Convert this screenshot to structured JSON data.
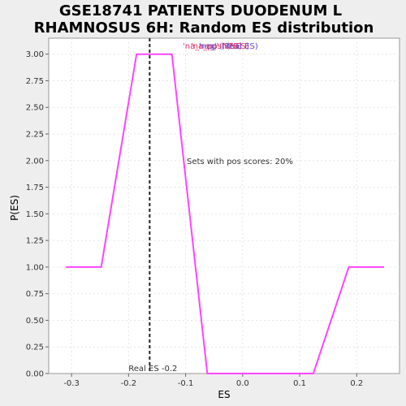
{
  "chart_data": {
    "type": "line",
    "title_lines": [
      "GSE18741 PATIENTS DUODENUM L",
      "RHAMNOSUS 6H: Random ES distribution"
    ],
    "xlabel": "ES",
    "ylabel": "P(ES)",
    "xlim": [
      -0.34,
      0.275
    ],
    "ylim": [
      0,
      3.15
    ],
    "x_ticks": [
      -0.3,
      -0.2,
      -0.1,
      0.0,
      0.1,
      0.2
    ],
    "x_tick_labels": [
      "-0.3",
      "-0.2",
      "-0.1",
      "0.0",
      "0.1",
      "0.2"
    ],
    "y_ticks": [
      0,
      0.25,
      0.5,
      0.75,
      1.0,
      1.25,
      1.5,
      1.75,
      2.0,
      2.25,
      2.5,
      2.75,
      3.0
    ],
    "y_tick_labels": [
      "0.00",
      "0.25",
      "0.50",
      "0.75",
      "1.00",
      "1.25",
      "1.50",
      "1.75",
      "2.00",
      "2.25",
      "2.50",
      "2.75",
      "3.00"
    ],
    "grid": true,
    "series": [
      {
        "color": "#ff44ff",
        "x": [
          -0.31,
          -0.248,
          -0.186,
          -0.124,
          -0.062,
          0.0,
          0.062,
          0.124,
          0.186,
          0.248
        ],
        "y": [
          1.0,
          1.0,
          3.0,
          3.0,
          0.0,
          0.0,
          0.0,
          0.0,
          1.0,
          1.0
        ]
      }
    ],
    "real_es": -0.163,
    "real_es_label": "Real ES -0.2",
    "pos_scores_text": "Sets with pos scores: 20%",
    "legend": {
      "placement": "top-right",
      "entries": [
        {
          "text": "'na_neg' (NES)",
          "color": "#dd3366"
        },
        {
          "text": "'na_pos' (NES)",
          "color": "#dd3366"
        },
        {
          "text": "'neg' (Real ES)",
          "color": "#6644cc"
        }
      ]
    }
  }
}
